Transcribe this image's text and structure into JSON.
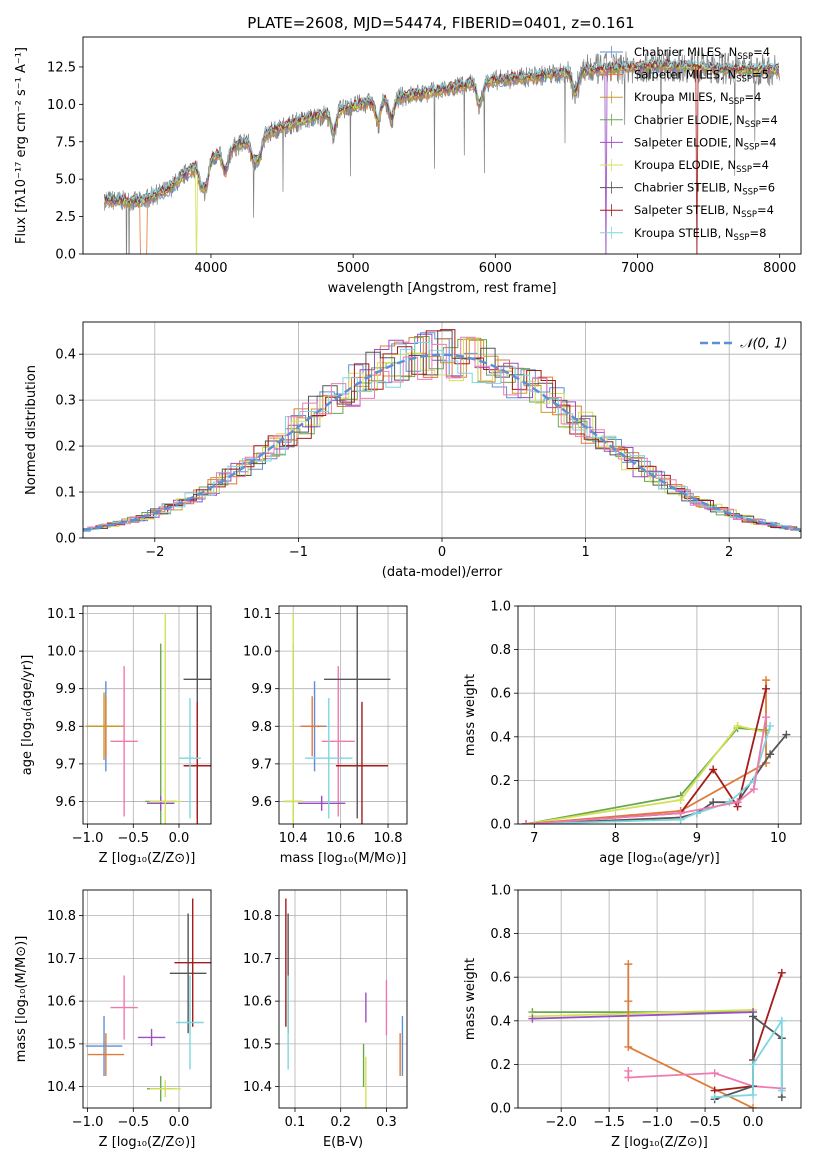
{
  "figure_title": "PLATE=2608, MJD=54474, FIBERID=0401, z=0.161",
  "colors": {
    "data": "#808080",
    "chabrier_miles": "#5f8fd6",
    "salpeter_miles": "#e07b39",
    "kroupa_miles": "#c99a2e",
    "chabrier_elodie": "#6aa84f",
    "salpeter_elodie": "#9b4fc4",
    "kroupa_elodie": "#d4e157",
    "chabrier_stelib": "#555555",
    "salpeter_stelib": "#a61b1b",
    "kroupa_stelib": "#7fd6e0",
    "normal": "#5b8fd8",
    "pink": "#f07ab0"
  },
  "chart_data": [
    {
      "id": "spectrum",
      "type": "line",
      "title": "PLATE=2608, MJD=54474, FIBERID=0401, z=0.161",
      "xlabel": "wavelength [Angstrom, rest frame]",
      "ylabel": "Flux [fλ10⁻¹⁷ erg cm⁻² s⁻¹ A⁻¹]",
      "xlim": [
        3100,
        8150
      ],
      "ylim": [
        0,
        14.5
      ],
      "xticks": [
        "4000",
        "5000",
        "6000",
        "7000",
        "8000"
      ],
      "yticks": [
        "0.0",
        "2.5",
        "5.0",
        "7.5",
        "10.0",
        "12.5"
      ],
      "grid": false,
      "legend_position": "top-right",
      "legend": [
        {
          "label": "Chabrier MILES, N_SSP=4",
          "text": "Chabrier MILES, N",
          "sub": "SSP",
          "tail": "=4"
        },
        {
          "label": "Salpeter MILES, N_SSP=5",
          "text": "Salpeter MILES, N",
          "sub": "SSP",
          "tail": "=5"
        },
        {
          "label": "Kroupa MILES, N_SSP=4",
          "text": "Kroupa MILES, N",
          "sub": "SSP",
          "tail": "=4"
        },
        {
          "label": "Chabrier ELODIE, N_SSP=4",
          "text": "Chabrier ELODIE, N",
          "sub": "SSP",
          "tail": "=4"
        },
        {
          "label": "Salpeter ELODIE, N_SSP=4",
          "text": "Salpeter ELODIE, N",
          "sub": "SSP",
          "tail": "=4"
        },
        {
          "label": "Kroupa ELODIE, N_SSP=4",
          "text": "Kroupa ELODIE, N",
          "sub": "SSP",
          "tail": "=4"
        },
        {
          "label": "Chabrier STELIB, N_SSP=6",
          "text": "Chabrier STELIB, N",
          "sub": "SSP",
          "tail": "=6"
        },
        {
          "label": "Salpeter STELIB, N_SSP=4",
          "text": "Salpeter STELIB, N",
          "sub": "SSP",
          "tail": "=4"
        },
        {
          "label": "Kroupa STELIB, N_SSP=8",
          "text": "Kroupa STELIB, N",
          "sub": "SSP",
          "tail": "=8"
        }
      ],
      "continuum": [
        [
          3250,
          3.6
        ],
        [
          3500,
          3.5
        ],
        [
          3700,
          4.3
        ],
        [
          3850,
          5.6
        ],
        [
          4000,
          6.4
        ],
        [
          4200,
          7.3
        ],
        [
          4400,
          8.1
        ],
        [
          4600,
          8.8
        ],
        [
          4800,
          9.3
        ],
        [
          5000,
          9.9
        ],
        [
          5200,
          10.3
        ],
        [
          5400,
          10.6
        ],
        [
          5600,
          10.9
        ],
        [
          5800,
          11.3
        ],
        [
          6000,
          11.6
        ],
        [
          6200,
          11.8
        ],
        [
          6400,
          12.0
        ],
        [
          6600,
          12.2
        ],
        [
          6800,
          12.4
        ],
        [
          7000,
          12.5
        ],
        [
          7200,
          12.6
        ],
        [
          7400,
          12.5
        ],
        [
          7600,
          12.4
        ],
        [
          7800,
          12.3
        ],
        [
          8000,
          12.3
        ]
      ],
      "absorption_lines": [
        3933,
        3968,
        4102,
        4300,
        4340,
        4861,
        5175,
        5270,
        5890,
        6563
      ],
      "dropouts": [
        {
          "model": "salpeter_miles",
          "x": 3550
        },
        {
          "model": "kroupa_elodie",
          "x": 3900
        },
        {
          "model": "salpeter_elodie",
          "x": 6780
        },
        {
          "model": "salpeter_stelib",
          "x": 7420
        }
      ]
    },
    {
      "id": "residuals",
      "type": "step-histogram",
      "xlabel": "(data-model)/error",
      "ylabel": "Normed distribution",
      "xlim": [
        -2.5,
        2.5
      ],
      "ylim": [
        0,
        0.47
      ],
      "xticks": [
        "−2",
        "−1",
        "0",
        "1",
        "2"
      ],
      "yticks": [
        "0.0",
        "0.1",
        "0.2",
        "0.3",
        "0.4"
      ],
      "grid": true,
      "legend_position": "top-right",
      "legend_label": "𝒩(0, 1)",
      "normal": {
        "mean": 0,
        "sigma": 1
      }
    },
    {
      "id": "age_vs_Z",
      "type": "errorbar",
      "xlabel": "Z [log₁₀(Z/Z⊙)]",
      "ylabel": "age  [log₁₀(age/yr)]",
      "xlim": [
        -1.05,
        0.35
      ],
      "ylim": [
        9.54,
        10.12
      ],
      "xticks": [
        "−1.0",
        "−0.5",
        "0.0"
      ],
      "yticks": [
        "9.6",
        "9.7",
        "9.8",
        "9.9",
        "10.0",
        "10.1"
      ],
      "grid": true,
      "points": [
        {
          "model": "chabrier_miles",
          "x": -0.8,
          "xerr": 0.2,
          "y": 9.8,
          "yerr": 0.12
        },
        {
          "model": "salpeter_miles",
          "x": -0.8,
          "xerr": 0.2,
          "y": 9.8,
          "yerr": 0.08
        },
        {
          "model": "kroupa_miles",
          "x": -0.82,
          "xerr": 0.2,
          "y": 9.8,
          "yerr": 0.09
        },
        {
          "model": "pink",
          "x": -0.6,
          "xerr": 0.15,
          "y": 9.76,
          "yerr": 0.2
        },
        {
          "model": "chabrier_elodie",
          "x": -0.2,
          "xerr": 0.17,
          "y": 9.6,
          "yerr": 0.42
        },
        {
          "model": "salpeter_elodie",
          "x": -0.2,
          "xerr": 0.15,
          "y": 9.595,
          "yerr": 0.02
        },
        {
          "model": "kroupa_elodie",
          "x": -0.15,
          "xerr": 0.17,
          "y": 9.6,
          "yerr": 0.5
        },
        {
          "model": "chabrier_stelib",
          "x": 0.2,
          "xerr": 0.15,
          "y": 9.925,
          "yerr": 0.37
        },
        {
          "model": "salpeter_stelib",
          "x": 0.2,
          "xerr": 0.15,
          "y": 9.695,
          "yerr": 0.17
        },
        {
          "model": "kroupa_stelib",
          "x": 0.12,
          "xerr": 0.12,
          "y": 9.715,
          "yerr": 0.16
        }
      ]
    },
    {
      "id": "age_vs_mass",
      "type": "errorbar",
      "xlabel": "mass [log₁₀(M/M⊙)]",
      "ylabel": "",
      "xlim": [
        10.34,
        10.88
      ],
      "ylim": [
        9.54,
        10.12
      ],
      "xticks": [
        "10.4",
        "10.6",
        "10.8"
      ],
      "yticks": [
        "9.6",
        "9.7",
        "9.8",
        "9.9",
        "10.0",
        "10.1"
      ],
      "grid": true,
      "points": [
        {
          "model": "chabrier_miles",
          "x": 10.49,
          "xerr": 0.05,
          "y": 9.8,
          "yerr": 0.12
        },
        {
          "model": "salpeter_miles",
          "x": 10.48,
          "xerr": 0.05,
          "y": 9.8,
          "yerr": 0.08
        },
        {
          "model": "pink",
          "x": 10.59,
          "xerr": 0.07,
          "y": 9.76,
          "yerr": 0.2
        },
        {
          "model": "chabrier_elodie",
          "x": 10.4,
          "xerr": 0.04,
          "y": 9.6,
          "yerr": 0.42
        },
        {
          "model": "salpeter_elodie",
          "x": 10.52,
          "xerr": 0.1,
          "y": 9.595,
          "yerr": 0.02
        },
        {
          "model": "kroupa_elodie",
          "x": 10.4,
          "xerr": 0.04,
          "y": 9.6,
          "yerr": 0.5
        },
        {
          "model": "chabrier_stelib",
          "x": 10.67,
          "xerr": 0.14,
          "y": 9.925,
          "yerr": 0.37
        },
        {
          "model": "salpeter_stelib",
          "x": 10.69,
          "xerr": 0.11,
          "y": 9.695,
          "yerr": 0.17
        },
        {
          "model": "kroupa_stelib",
          "x": 10.55,
          "xerr": 0.1,
          "y": 9.715,
          "yerr": 0.16
        }
      ]
    },
    {
      "id": "massweight_vs_age",
      "type": "line",
      "xlabel": "age  [log₁₀(age/yr)]",
      "ylabel": "mass weight",
      "xlim": [
        6.8,
        10.28
      ],
      "ylim": [
        0,
        1.0
      ],
      "xticks": [
        "7",
        "8",
        "9",
        "10"
      ],
      "yticks": [
        "0.0",
        "0.2",
        "0.4",
        "0.6",
        "0.8",
        "1.0"
      ],
      "grid": true,
      "series": [
        {
          "model": "chabrier_elodie",
          "x": [
            6.9,
            8.8,
            9.5,
            9.85
          ],
          "y": [
            0.0,
            0.13,
            0.44,
            0.43
          ]
        },
        {
          "model": "kroupa_elodie",
          "x": [
            6.9,
            8.8,
            9.5,
            9.85
          ],
          "y": [
            0.0,
            0.11,
            0.45,
            0.42
          ]
        },
        {
          "model": "salpeter_miles",
          "x": [
            6.9,
            8.8,
            9.85,
            9.85
          ],
          "y": [
            0.0,
            0.06,
            0.28,
            0.66
          ]
        },
        {
          "model": "salpeter_stelib",
          "x": [
            6.9,
            8.8,
            9.2,
            9.5,
            9.85
          ],
          "y": [
            0.0,
            0.05,
            0.25,
            0.08,
            0.62
          ]
        },
        {
          "model": "chabrier_stelib",
          "x": [
            6.9,
            8.8,
            9.0,
            9.2,
            9.5,
            9.9,
            10.1
          ],
          "y": [
            0.0,
            0.03,
            0.05,
            0.1,
            0.1,
            0.32,
            0.41
          ]
        },
        {
          "model": "kroupa_stelib",
          "x": [
            6.9,
            8.8,
            9.0,
            9.4,
            9.7,
            9.9
          ],
          "y": [
            0.0,
            0.02,
            0.05,
            0.1,
            0.2,
            0.45
          ]
        },
        {
          "model": "pink",
          "x": [
            6.9,
            8.8,
            9.5,
            9.7,
            9.85
          ],
          "y": [
            0.0,
            0.05,
            0.1,
            0.16,
            0.49
          ]
        }
      ]
    },
    {
      "id": "mass_vs_Z",
      "type": "errorbar",
      "xlabel": "Z [log₁₀(Z/Z⊙)]",
      "ylabel": "mass [log₁₀(M/M⊙)]",
      "xlim": [
        -1.05,
        0.35
      ],
      "ylim": [
        10.35,
        10.86
      ],
      "xticks": [
        "−1.0",
        "−0.5",
        "0.0"
      ],
      "yticks": [
        "10.4",
        "10.5",
        "10.6",
        "10.7",
        "10.8"
      ],
      "grid": true,
      "points": [
        {
          "model": "chabrier_miles",
          "x": -0.82,
          "xerr": 0.2,
          "y": 10.495,
          "yerr": 0.07
        },
        {
          "model": "salpeter_miles",
          "x": -0.8,
          "xerr": 0.2,
          "y": 10.475,
          "yerr": 0.05
        },
        {
          "model": "pink",
          "x": -0.6,
          "xerr": 0.15,
          "y": 10.585,
          "yerr": 0.075
        },
        {
          "model": "salpeter_elodie",
          "x": -0.3,
          "xerr": 0.15,
          "y": 10.515,
          "yerr": 0.02
        },
        {
          "model": "chabrier_elodie",
          "x": -0.2,
          "xerr": 0.15,
          "y": 10.395,
          "yerr": 0.03
        },
        {
          "model": "kroupa_elodie",
          "x": -0.15,
          "xerr": 0.17,
          "y": 10.395,
          "yerr": 0.02
        },
        {
          "model": "chabrier_stelib",
          "x": 0.1,
          "xerr": 0.2,
          "y": 10.665,
          "yerr": 0.14
        },
        {
          "model": "salpeter_stelib",
          "x": 0.15,
          "xerr": 0.2,
          "y": 10.69,
          "yerr": 0.15
        },
        {
          "model": "kroupa_stelib",
          "x": 0.12,
          "xerr": 0.15,
          "y": 10.55,
          "yerr": 0.11
        }
      ]
    },
    {
      "id": "mass_vs_ebv",
      "type": "errorbar",
      "xlabel": "E(B-V)",
      "ylabel": "",
      "xlim": [
        0.065,
        0.345
      ],
      "ylim": [
        10.35,
        10.86
      ],
      "xticks": [
        "0.1",
        "0.2",
        "0.3"
      ],
      "yticks": [
        "10.4",
        "10.5",
        "10.6",
        "10.7",
        "10.8"
      ],
      "grid": true,
      "points": [
        {
          "model": "salpeter_stelib",
          "x": 0.08,
          "xerr": 0,
          "y": 10.69,
          "yerr": 0.15
        },
        {
          "model": "chabrier_stelib",
          "x": 0.085,
          "xerr": 0,
          "y": 10.665,
          "yerr": 0.14
        },
        {
          "model": "kroupa_stelib",
          "x": 0.085,
          "xerr": 0,
          "y": 10.55,
          "yerr": 0.11
        },
        {
          "model": "salpeter_elodie",
          "x": 0.255,
          "xerr": 0,
          "y": 10.585,
          "yerr": 0.035
        },
        {
          "model": "kroupa_elodie",
          "x": 0.255,
          "xerr": 0,
          "y": 10.395,
          "yerr": 0.075
        },
        {
          "model": "chabrier_elodie",
          "x": 0.25,
          "xerr": 0,
          "y": 10.45,
          "yerr": 0.05
        },
        {
          "model": "pink",
          "x": 0.3,
          "xerr": 0,
          "y": 10.585,
          "yerr": 0.065
        },
        {
          "model": "chabrier_miles",
          "x": 0.335,
          "xerr": 0,
          "y": 10.495,
          "yerr": 0.07
        },
        {
          "model": "salpeter_miles",
          "x": 0.33,
          "xerr": 0,
          "y": 10.475,
          "yerr": 0.05
        }
      ]
    },
    {
      "id": "massweight_vs_Z",
      "type": "line",
      "xlabel": "Z [log₁₀(Z/Z⊙)]",
      "ylabel": "mass weight",
      "xlim": [
        -2.45,
        0.5
      ],
      "ylim": [
        0,
        1.0
      ],
      "xticks": [
        "−2.0",
        "−1.5",
        "−1.0",
        "−0.5",
        "0.0"
      ],
      "yticks": [
        "0.0",
        "0.2",
        "0.4",
        "0.6",
        "0.8",
        "1.0"
      ],
      "grid": true,
      "series": [
        {
          "model": "chabrier_elodie",
          "x": [
            -2.3,
            0.0
          ],
          "y": [
            0.44,
            0.44
          ]
        },
        {
          "model": "kroupa_elodie",
          "x": [
            -2.3,
            0.0
          ],
          "y": [
            0.42,
            0.45
          ]
        },
        {
          "model": "salpeter_elodie",
          "x": [
            -2.3,
            0.0
          ],
          "y": [
            0.41,
            0.44
          ]
        },
        {
          "model": "salpeter_miles",
          "x": [
            -1.3,
            -1.3,
            -1.3,
            0.0
          ],
          "y": [
            0.66,
            0.49,
            0.28,
            0.0
          ]
        },
        {
          "model": "pink",
          "x": [
            -1.3,
            -1.3,
            -0.4,
            0.0,
            0.3
          ],
          "y": [
            0.17,
            0.14,
            0.16,
            0.1,
            0.09
          ]
        },
        {
          "model": "salpeter_stelib",
          "x": [
            -0.4,
            0.0,
            0.0,
            0.3
          ],
          "y": [
            0.08,
            0.1,
            0.22,
            0.62
          ]
        },
        {
          "model": "chabrier_stelib",
          "x": [
            -0.4,
            0.0,
            0.0,
            0.3,
            0.3
          ],
          "y": [
            0.04,
            0.1,
            0.42,
            0.32,
            0.05
          ]
        },
        {
          "model": "kroupa_stelib",
          "x": [
            -0.4,
            0.0,
            0.0,
            0.3,
            0.3
          ],
          "y": [
            0.05,
            0.06,
            0.2,
            0.4,
            0.08
          ]
        }
      ]
    }
  ]
}
